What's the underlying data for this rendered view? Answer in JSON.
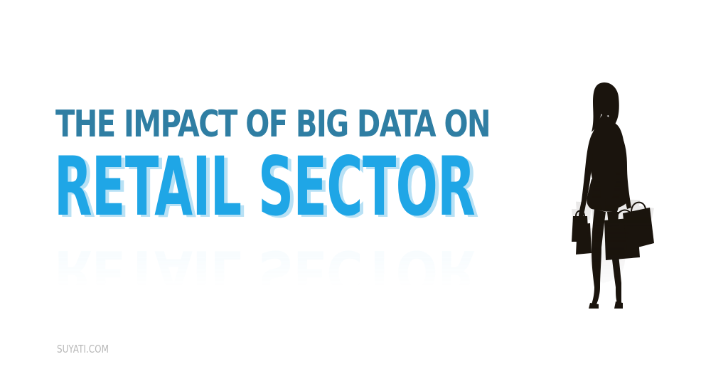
{
  "headline": {
    "line1": "THE IMPACT OF BIG DATA ON",
    "line2": "RETAIL SECTOR"
  },
  "footer": {
    "website": "SUYATI.COM"
  },
  "colors": {
    "background": "#ffffff",
    "headline_line1": "#2f7ea3",
    "headline_line2": "#1fa6e6",
    "headline_line2_shadow": "#b8e1f5",
    "reflection": "#1fa6e6",
    "footer_text": "#b8b8b8",
    "silhouette": "#1a140d"
  },
  "icons": {
    "figure": "woman-with-shopping-bags-silhouette"
  }
}
